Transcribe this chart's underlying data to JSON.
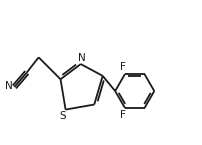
{
  "bg_color": "#ffffff",
  "line_color": "#1a1a1a",
  "line_width": 1.3,
  "font_size": 7.5,
  "figsize": [
    2.02,
    1.45
  ],
  "dpi": 100,
  "xlim": [
    0.0,
    5.5
  ],
  "ylim": [
    -0.5,
    3.8
  ]
}
